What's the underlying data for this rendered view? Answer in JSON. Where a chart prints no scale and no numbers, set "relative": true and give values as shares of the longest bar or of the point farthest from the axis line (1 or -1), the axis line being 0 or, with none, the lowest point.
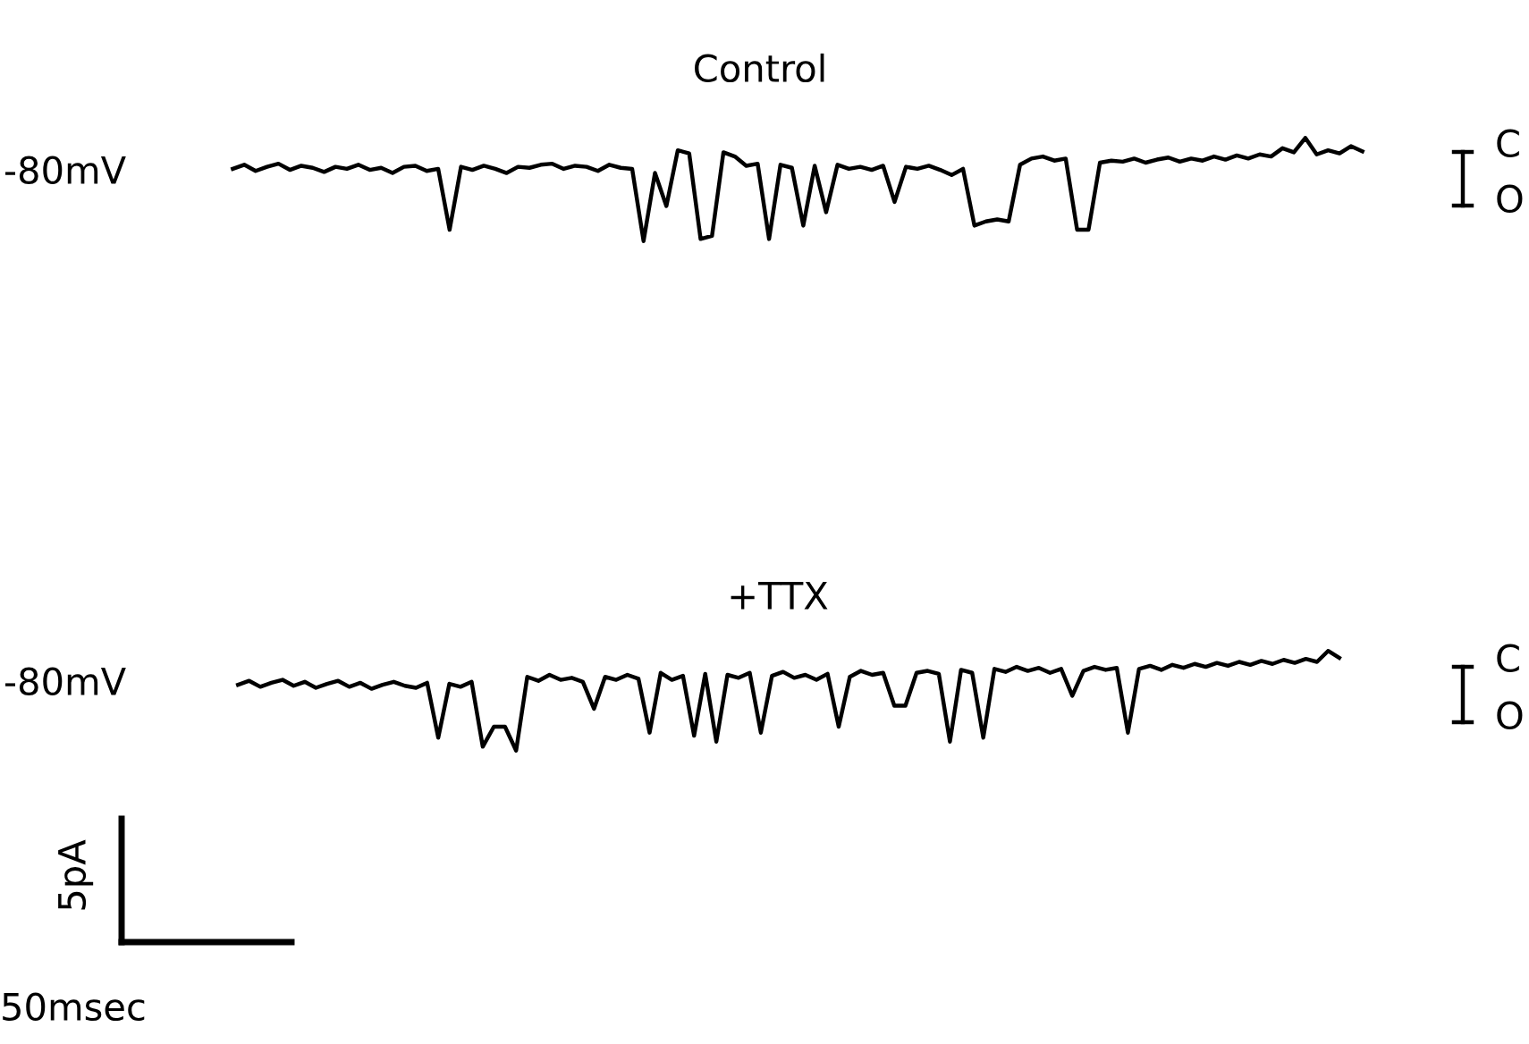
{
  "chart_data": [
    {
      "type": "line",
      "title": "Control",
      "relative": true,
      "tick_labels": false,
      "annotations": [
        "-80mV",
        "C",
        "O"
      ],
      "categories": [
        null,
        null,
        null,
        null,
        null,
        null,
        null,
        null,
        null,
        null,
        null,
        null,
        null,
        null,
        null,
        null,
        null,
        null,
        null,
        null,
        null,
        null,
        null,
        null,
        null,
        null,
        null,
        null,
        null,
        null,
        null,
        null,
        null,
        null,
        null,
        null,
        null,
        null,
        null,
        null,
        null,
        null,
        null,
        null,
        null,
        null,
        null,
        null,
        null,
        null,
        null,
        null,
        null,
        null,
        null,
        null,
        null,
        null,
        null,
        null,
        null,
        null,
        null,
        null,
        null,
        null,
        null,
        null,
        null,
        null,
        null,
        null,
        null,
        null,
        null,
        null,
        null,
        null,
        null,
        null,
        null,
        null,
        null,
        null,
        null,
        null,
        null,
        null,
        null,
        null,
        null,
        null,
        null,
        null,
        null,
        null,
        null,
        null,
        null,
        null
      ],
      "series": [
        {
          "color": "#000000",
          "values": [
            0.7,
            0.74,
            0.68,
            0.72,
            0.75,
            0.69,
            0.73,
            0.71,
            0.67,
            0.72,
            0.7,
            0.74,
            0.69,
            0.71,
            0.66,
            0.72,
            0.73,
            0.68,
            0.7,
            0.11,
            0.72,
            0.69,
            0.73,
            0.7,
            0.66,
            0.72,
            0.71,
            0.74,
            0.75,
            0.7,
            0.73,
            0.72,
            0.68,
            0.74,
            0.71,
            0.7,
            0.0,
            0.66,
            0.34,
            0.88,
            0.85,
            0.02,
            0.05,
            0.86,
            0.82,
            0.73,
            0.75,
            0.02,
            0.74,
            0.71,
            0.15,
            0.73,
            0.28,
            0.74,
            0.7,
            0.72,
            0.69,
            0.73,
            0.38,
            0.72,
            0.7,
            0.73,
            0.69,
            0.64,
            0.7,
            0.15,
            0.19,
            0.21,
            0.19,
            0.74,
            0.8,
            0.82,
            0.78,
            0.8,
            0.11,
            0.11,
            0.76,
            0.78,
            0.77,
            0.8,
            0.76,
            0.79,
            0.81,
            0.77,
            0.8,
            0.78,
            0.82,
            0.79,
            0.83,
            0.8,
            0.84,
            0.82,
            0.9,
            0.86,
            1.0,
            0.84,
            0.88,
            0.85,
            0.92,
            0.87
          ]
        }
      ]
    },
    {
      "type": "line",
      "title": "+TTX",
      "relative": true,
      "tick_labels": false,
      "annotations": [
        "-80mV",
        "C",
        "O",
        "5pA",
        "50msec"
      ],
      "categories": [
        null,
        null,
        null,
        null,
        null,
        null,
        null,
        null,
        null,
        null,
        null,
        null,
        null,
        null,
        null,
        null,
        null,
        null,
        null,
        null,
        null,
        null,
        null,
        null,
        null,
        null,
        null,
        null,
        null,
        null,
        null,
        null,
        null,
        null,
        null,
        null,
        null,
        null,
        null,
        null,
        null,
        null,
        null,
        null,
        null,
        null,
        null,
        null,
        null,
        null,
        null,
        null,
        null,
        null,
        null,
        null,
        null,
        null,
        null,
        null,
        null,
        null,
        null,
        null,
        null,
        null,
        null,
        null,
        null,
        null,
        null,
        null,
        null,
        null,
        null,
        null,
        null,
        null,
        null,
        null,
        null,
        null,
        null,
        null,
        null,
        null,
        null,
        null,
        null,
        null,
        null,
        null,
        null,
        null,
        null,
        null,
        null,
        null,
        null,
        null
      ],
      "series": [
        {
          "color": "#000000",
          "values": [
            0.66,
            0.7,
            0.64,
            0.68,
            0.71,
            0.65,
            0.69,
            0.63,
            0.67,
            0.7,
            0.64,
            0.68,
            0.62,
            0.66,
            0.69,
            0.65,
            0.63,
            0.68,
            0.13,
            0.67,
            0.64,
            0.69,
            0.04,
            0.24,
            0.24,
            0.0,
            0.74,
            0.7,
            0.76,
            0.71,
            0.73,
            0.69,
            0.42,
            0.74,
            0.71,
            0.76,
            0.72,
            0.18,
            0.78,
            0.71,
            0.75,
            0.15,
            0.77,
            0.09,
            0.76,
            0.73,
            0.78,
            0.18,
            0.75,
            0.79,
            0.73,
            0.76,
            0.71,
            0.77,
            0.24,
            0.74,
            0.8,
            0.76,
            0.78,
            0.45,
            0.45,
            0.78,
            0.8,
            0.77,
            0.09,
            0.81,
            0.78,
            0.13,
            0.82,
            0.79,
            0.84,
            0.8,
            0.83,
            0.78,
            0.82,
            0.55,
            0.8,
            0.84,
            0.81,
            0.83,
            0.18,
            0.82,
            0.85,
            0.81,
            0.86,
            0.83,
            0.87,
            0.84,
            0.88,
            0.85,
            0.89,
            0.86,
            0.9,
            0.87,
            0.91,
            0.88,
            0.92,
            0.89,
            1.0,
            0.93
          ]
        }
      ]
    }
  ]
}
